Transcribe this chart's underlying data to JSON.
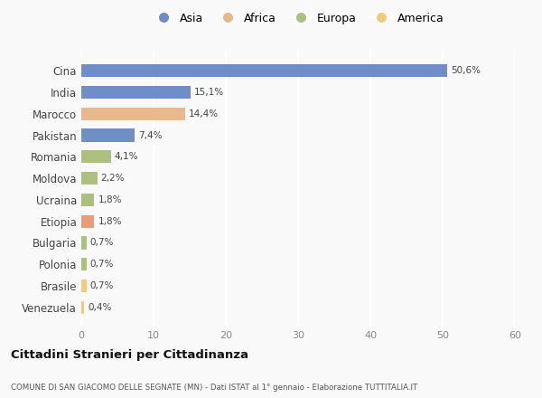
{
  "categories": [
    "Cina",
    "India",
    "Marocco",
    "Pakistan",
    "Romania",
    "Moldova",
    "Ucraina",
    "Etiopia",
    "Bulgaria",
    "Polonia",
    "Brasile",
    "Venezuela"
  ],
  "values": [
    50.6,
    15.1,
    14.4,
    7.4,
    4.1,
    2.2,
    1.8,
    1.8,
    0.7,
    0.7,
    0.7,
    0.4
  ],
  "labels": [
    "50,6%",
    "15,1%",
    "14,4%",
    "7,4%",
    "4,1%",
    "2,2%",
    "1,8%",
    "1,8%",
    "0,7%",
    "0,7%",
    "0,7%",
    "0,4%"
  ],
  "colors": [
    "#6e8ec5",
    "#6e8ec5",
    "#e8b98e",
    "#6e8ec5",
    "#adc080",
    "#adc080",
    "#adc080",
    "#e89c78",
    "#adc080",
    "#adc080",
    "#f0cc7a",
    "#f0cc7a"
  ],
  "legend_labels": [
    "Asia",
    "Africa",
    "Europa",
    "America"
  ],
  "legend_colors": [
    "#6e8ec5",
    "#e8b98e",
    "#adc080",
    "#f0cc7a"
  ],
  "xlim": [
    0,
    60
  ],
  "xticks": [
    0,
    10,
    20,
    30,
    40,
    50,
    60
  ],
  "title": "Cittadini Stranieri per Cittadinanza",
  "subtitle": "COMUNE DI SAN GIACOMO DELLE SEGNATE (MN) - Dati ISTAT al 1° gennaio - Elaborazione TUTTITALIA.IT",
  "bg_color": "#f9f9f9",
  "grid_color": "#ffffff",
  "bar_height": 0.6
}
